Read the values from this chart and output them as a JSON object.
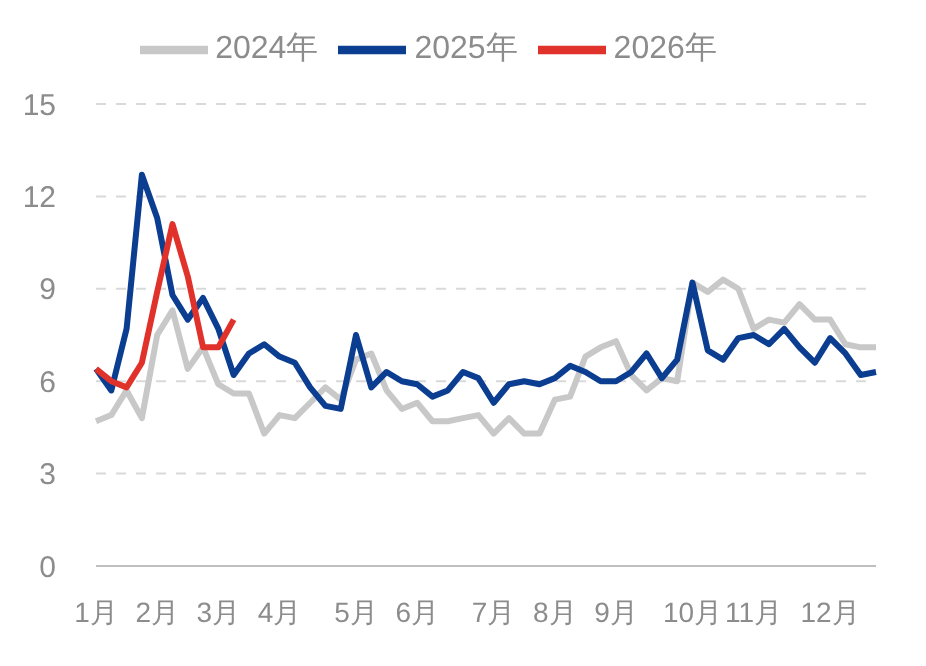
{
  "chart_data": {
    "type": "line",
    "categories": [
      "1月",
      null,
      null,
      null,
      "2月",
      null,
      null,
      null,
      "3月",
      null,
      null,
      null,
      "4月",
      null,
      null,
      null,
      null,
      "5月",
      null,
      null,
      null,
      "6月",
      null,
      null,
      null,
      null,
      "7月",
      null,
      null,
      null,
      "8月",
      null,
      null,
      null,
      "9月",
      null,
      null,
      null,
      null,
      "10月",
      null,
      null,
      null,
      "11月",
      null,
      null,
      null,
      null,
      "12月",
      null,
      null,
      null
    ],
    "series": [
      {
        "name": "2024年",
        "color": "#c8c8c8",
        "values": [
          4.7,
          4.9,
          5.7,
          4.8,
          7.5,
          8.3,
          6.4,
          7.1,
          5.9,
          5.6,
          5.6,
          4.3,
          4.9,
          4.8,
          5.3,
          5.8,
          5.4,
          6.7,
          6.9,
          5.7,
          5.1,
          5.3,
          4.7,
          4.7,
          4.8,
          4.9,
          4.3,
          4.8,
          4.3,
          4.3,
          5.4,
          5.5,
          6.8,
          7.1,
          7.3,
          6.2,
          5.7,
          6.1,
          6.0,
          9.2,
          8.9,
          9.3,
          9.0,
          7.7,
          8.0,
          7.9,
          8.5,
          8.0,
          8.0,
          7.2,
          7.1,
          7.1
        ]
      },
      {
        "name": "2025年",
        "color": "#0b3d91",
        "values": [
          6.4,
          5.7,
          7.7,
          12.7,
          11.3,
          8.8,
          8.0,
          8.7,
          7.7,
          6.2,
          6.9,
          7.2,
          6.8,
          6.6,
          5.8,
          5.2,
          5.1,
          7.5,
          5.8,
          6.3,
          6.0,
          5.9,
          5.5,
          5.7,
          6.3,
          6.1,
          5.3,
          5.9,
          6.0,
          5.9,
          6.1,
          6.5,
          6.3,
          6.0,
          6.0,
          6.3,
          6.9,
          6.1,
          6.7,
          9.2,
          7.0,
          6.7,
          7.4,
          7.5,
          7.2,
          7.7,
          7.1,
          6.6,
          7.4,
          6.9,
          6.2,
          6.3
        ]
      },
      {
        "name": "2026年",
        "color": "#e0322b",
        "values": [
          6.4,
          6.0,
          5.8,
          6.6,
          8.9,
          11.1,
          9.4,
          7.1,
          7.1,
          8.0,
          null,
          null,
          null,
          null,
          null,
          null,
          null,
          null,
          null,
          null,
          null,
          null,
          null,
          null,
          null,
          null,
          null,
          null,
          null,
          null,
          null,
          null,
          null,
          null,
          null,
          null,
          null,
          null,
          null,
          null,
          null,
          null,
          null,
          null,
          null,
          null,
          null,
          null,
          null,
          null,
          null,
          null
        ]
      }
    ],
    "ylim": [
      0,
      15
    ],
    "yticks": [
      0,
      3,
      6,
      9,
      12,
      15
    ],
    "grid": "y",
    "legend": "top"
  }
}
